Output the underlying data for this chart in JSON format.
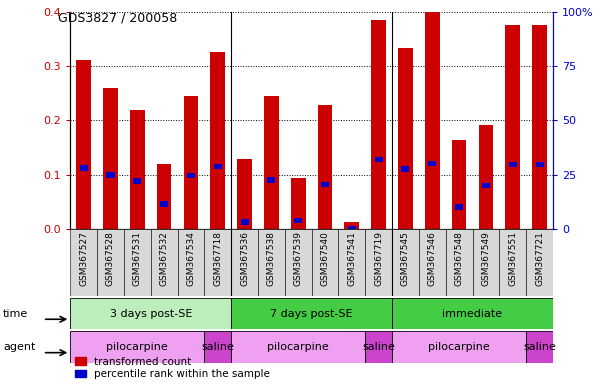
{
  "title": "GDS3827 / 200058",
  "samples": [
    "GSM367527",
    "GSM367528",
    "GSM367531",
    "GSM367532",
    "GSM367534",
    "GSM367718",
    "GSM367536",
    "GSM367538",
    "GSM367539",
    "GSM367540",
    "GSM367541",
    "GSM367719",
    "GSM367545",
    "GSM367546",
    "GSM367548",
    "GSM367549",
    "GSM367551",
    "GSM367721"
  ],
  "red_values": [
    0.31,
    0.26,
    0.218,
    0.12,
    0.245,
    0.325,
    0.128,
    0.245,
    0.093,
    0.228,
    0.013,
    0.385,
    0.332,
    0.4,
    0.163,
    0.192,
    0.375,
    0.375
  ],
  "blue_values": [
    0.112,
    0.099,
    0.088,
    0.046,
    0.098,
    0.115,
    0.013,
    0.09,
    0.015,
    0.082,
    0.0,
    0.128,
    0.11,
    0.12,
    0.04,
    0.08,
    0.118,
    0.118
  ],
  "blue_bar_height": 0.01,
  "ylim_left": [
    0,
    0.4
  ],
  "ylim_right": [
    0,
    100
  ],
  "yticks_left": [
    0,
    0.1,
    0.2,
    0.3,
    0.4
  ],
  "yticks_right": [
    0,
    25,
    50,
    75,
    100
  ],
  "left_color": "#cc0000",
  "right_color": "#0000cc",
  "bar_width": 0.55,
  "blue_bar_width": 0.3,
  "groups": [
    {
      "label": "3 days post-SE",
      "start": 0,
      "end": 6,
      "color": "#bbeebb"
    },
    {
      "label": "7 days post-SE",
      "start": 6,
      "end": 12,
      "color": "#44cc44"
    },
    {
      "label": "immediate",
      "start": 12,
      "end": 18,
      "color": "#44cc44"
    }
  ],
  "agents": [
    {
      "label": "pilocarpine",
      "start": 0,
      "end": 5,
      "color": "#f0a0f0"
    },
    {
      "label": "saline",
      "start": 5,
      "end": 6,
      "color": "#cc44cc"
    },
    {
      "label": "pilocarpine",
      "start": 6,
      "end": 11,
      "color": "#f0a0f0"
    },
    {
      "label": "saline",
      "start": 11,
      "end": 12,
      "color": "#cc44cc"
    },
    {
      "label": "pilocarpine",
      "start": 12,
      "end": 17,
      "color": "#f0a0f0"
    },
    {
      "label": "saline",
      "start": 17,
      "end": 18,
      "color": "#cc44cc"
    }
  ],
  "time_label": "time",
  "agent_label": "agent",
  "legend_red": "transformed count",
  "legend_blue": "percentile rank within the sample"
}
